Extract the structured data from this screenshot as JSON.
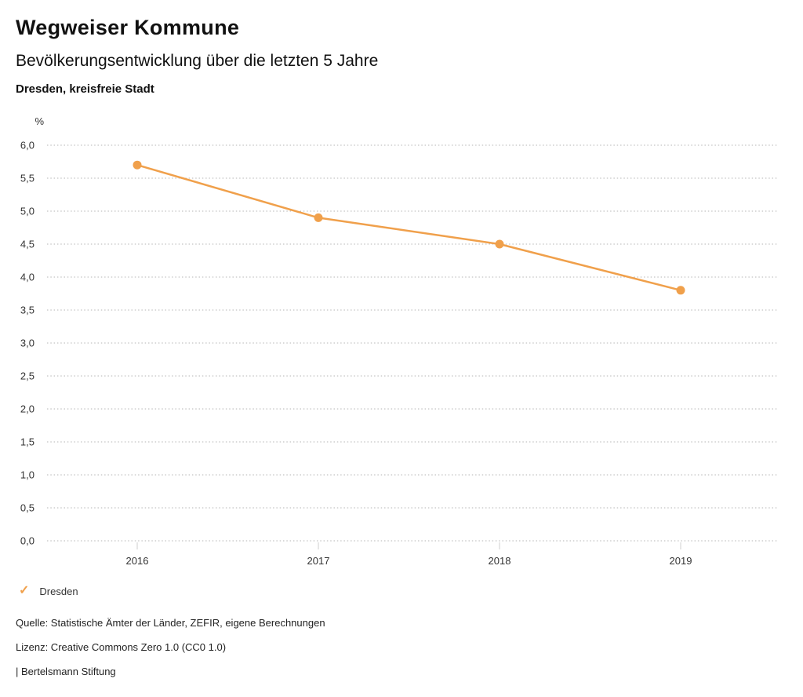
{
  "header": {
    "brand": "Wegweiser Kommune",
    "title": "Bevölkerungsentwicklung über die letzten 5 Jahre",
    "subtitle": "Dresden, kreisfreie Stadt"
  },
  "chart_data": {
    "type": "line",
    "title": "Bevölkerungsentwicklung über die letzten 5 Jahre",
    "subtitle": "Dresden, kreisfreie Stadt",
    "xlabel": "",
    "ylabel": "%",
    "categories": [
      "2016",
      "2017",
      "2018",
      "2019"
    ],
    "series": [
      {
        "name": "Dresden",
        "color": "#F0A04B",
        "values": [
          5.7,
          4.9,
          4.5,
          3.8
        ]
      }
    ],
    "ylim": [
      0,
      6
    ],
    "ytick_step": 0.5,
    "ytick_labels": [
      "0,0",
      "0,5",
      "1,0",
      "1,5",
      "2,0",
      "2,5",
      "3,0",
      "3,5",
      "4,0",
      "4,5",
      "5,0",
      "5,5",
      "6,0"
    ],
    "grid": "dotted-horizontal",
    "legend_position": "bottom-left"
  },
  "legend": {
    "check_icon": "✓",
    "label": "Dresden"
  },
  "footer": {
    "source": "Quelle: Statistische Ämter der Länder, ZEFIR, eigene Berechnungen",
    "license": "Lizenz: Creative Commons Zero 1.0 (CC0 1.0)",
    "attribution": "| Bertelsmann Stiftung"
  },
  "colors": {
    "accent": "#F0A04B",
    "grid": "#b5b5b5",
    "tick": "#cfcfcf",
    "axis_text": "#333333",
    "title_text": "#111111"
  }
}
